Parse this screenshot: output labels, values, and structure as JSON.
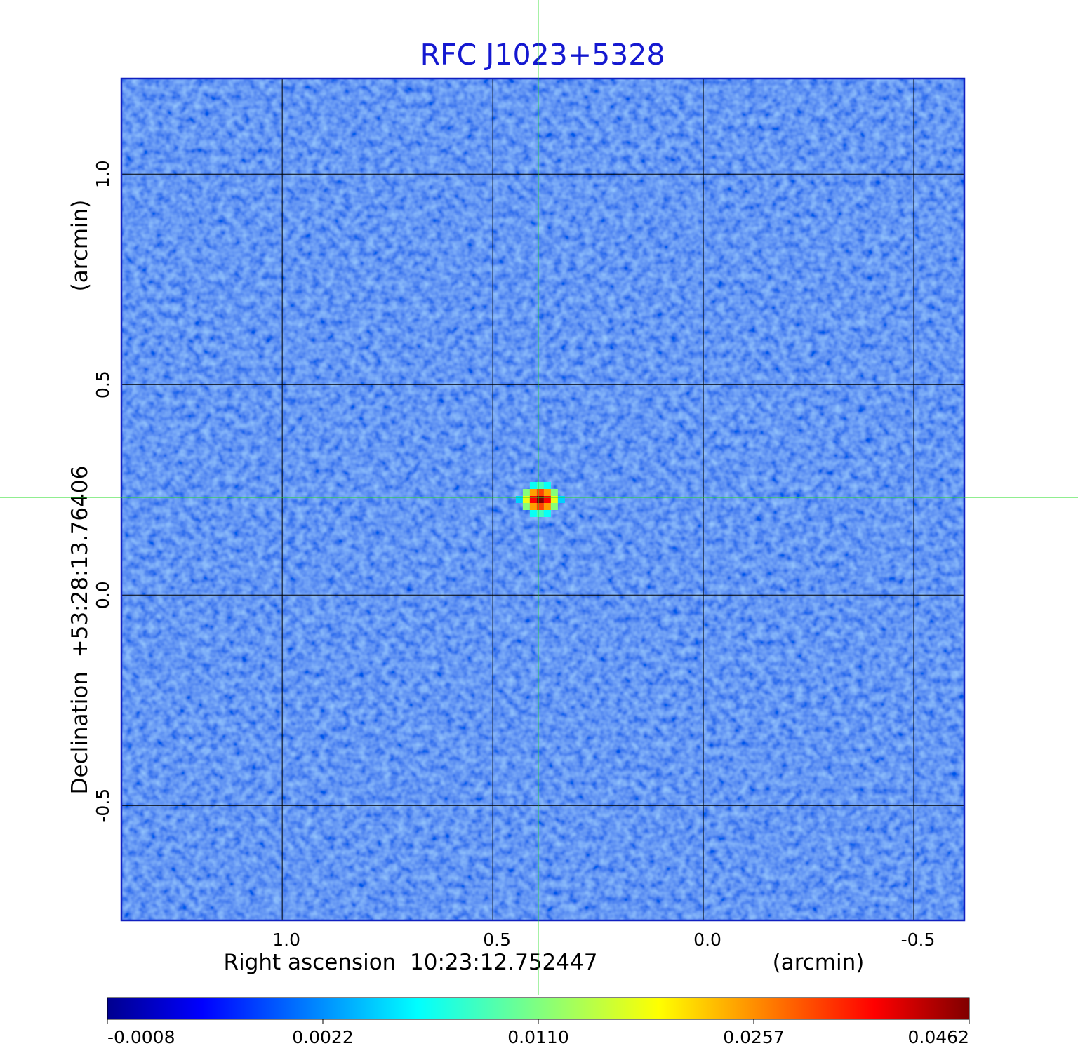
{
  "chart_data": {
    "type": "image",
    "title": "RFC J1023+5328",
    "x_label": "Right ascension  10:23:12.752447",
    "x_unit": "(arcmin)",
    "y_label": "Declination  +53:28:13.76406",
    "y_unit": "(arcmin)",
    "xlim": [
      1.382,
      -0.62
    ],
    "ylim": [
      -0.773,
      1.227
    ],
    "xticks": [
      {
        "value": 1.0,
        "label": "1.0"
      },
      0.5,
      {
        "value": 0.0,
        "label": "0.0"
      },
      -0.5
    ],
    "yticks": [
      -0.5,
      {
        "value": 0.0,
        "label": "0.0"
      },
      0.5,
      {
        "value": 1.0,
        "label": "1.0"
      }
    ],
    "grid": true,
    "crosshair": [
      0.392,
      0.232
    ],
    "source": {
      "x": 0.387,
      "y": 0.227,
      "peak": 0.0462
    },
    "colorbar_ticks": [
      -0.0008,
      0.0022,
      {
        "value": 0.011,
        "label": "0.0110"
      },
      0.0257,
      0.0462
    ],
    "colormap": "jet"
  }
}
